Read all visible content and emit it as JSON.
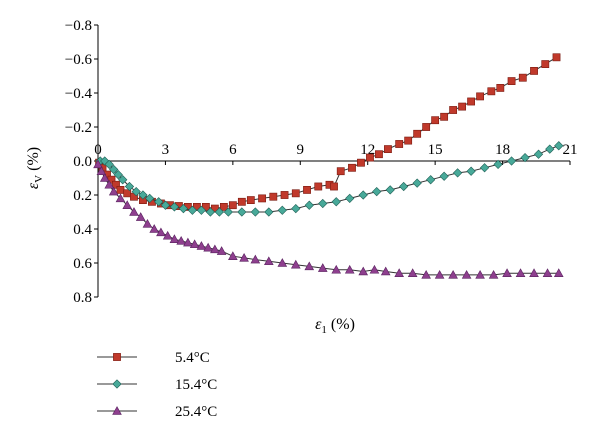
{
  "chart_data": {
    "type": "line",
    "xlabel_symbol": "ε",
    "xlabel_subscript": "1",
    "xlabel_unit": " (%)",
    "ylabel_symbol": "ε",
    "ylabel_subscript": "V",
    "ylabel_unit": " (%)",
    "xlim": [
      0,
      21
    ],
    "ylim": [
      -0.8,
      0.8
    ],
    "y_inverted": true,
    "x_ticks": [
      "0",
      "3",
      "6",
      "9",
      "12",
      "15",
      "18",
      "21"
    ],
    "x_tick_values": [
      0,
      3,
      6,
      9,
      12,
      15,
      18,
      21
    ],
    "y_ticks": [
      "−0.8",
      "−0.6",
      "−0.4",
      "−0.2",
      "0.0",
      "0.2",
      "0.4",
      "0.6",
      "0.8"
    ],
    "y_tick_values": [
      -0.8,
      -0.6,
      -0.4,
      -0.2,
      0.0,
      0.2,
      0.4,
      0.6,
      0.8
    ],
    "grid": false,
    "legend_position": "bottom-left",
    "series": [
      {
        "name": "5.4°C",
        "marker": "square",
        "color": "#c0392b",
        "points": [
          [
            0.05,
            0.01
          ],
          [
            0.2,
            0.04
          ],
          [
            0.4,
            0.08
          ],
          [
            0.6,
            0.11
          ],
          [
            0.8,
            0.14
          ],
          [
            1.0,
            0.17
          ],
          [
            1.3,
            0.19
          ],
          [
            1.6,
            0.21
          ],
          [
            2.0,
            0.23
          ],
          [
            2.4,
            0.24
          ],
          [
            2.8,
            0.25
          ],
          [
            3.2,
            0.26
          ],
          [
            3.6,
            0.265
          ],
          [
            4.0,
            0.27
          ],
          [
            4.4,
            0.27
          ],
          [
            4.8,
            0.27
          ],
          [
            5.2,
            0.28
          ],
          [
            5.6,
            0.27
          ],
          [
            6.0,
            0.26
          ],
          [
            6.4,
            0.24
          ],
          [
            6.8,
            0.23
          ],
          [
            7.3,
            0.22
          ],
          [
            7.8,
            0.21
          ],
          [
            8.3,
            0.2
          ],
          [
            8.8,
            0.19
          ],
          [
            9.3,
            0.17
          ],
          [
            9.8,
            0.15
          ],
          [
            10.3,
            0.14
          ],
          [
            10.5,
            0.15
          ],
          [
            10.8,
            0.06
          ],
          [
            11.3,
            0.04
          ],
          [
            11.7,
            0.01
          ],
          [
            12.1,
            -0.02
          ],
          [
            12.5,
            -0.04
          ],
          [
            12.9,
            -0.07
          ],
          [
            13.4,
            -0.1
          ],
          [
            13.8,
            -0.12
          ],
          [
            14.2,
            -0.16
          ],
          [
            14.6,
            -0.2
          ],
          [
            15.0,
            -0.24
          ],
          [
            15.4,
            -0.26
          ],
          [
            15.8,
            -0.3
          ],
          [
            16.2,
            -0.32
          ],
          [
            16.6,
            -0.35
          ],
          [
            17.0,
            -0.38
          ],
          [
            17.5,
            -0.41
          ],
          [
            17.9,
            -0.43
          ],
          [
            18.4,
            -0.47
          ],
          [
            18.9,
            -0.49
          ],
          [
            19.4,
            -0.53
          ],
          [
            19.9,
            -0.57
          ],
          [
            20.4,
            -0.61
          ]
        ]
      },
      {
        "name": "15.4°C",
        "marker": "diamond",
        "color": "#48a999",
        "points": [
          [
            0.1,
            0.0
          ],
          [
            0.3,
            0.0
          ],
          [
            0.5,
            0.02
          ],
          [
            0.7,
            0.05
          ],
          [
            0.9,
            0.08
          ],
          [
            1.1,
            0.11
          ],
          [
            1.4,
            0.15
          ],
          [
            1.7,
            0.18
          ],
          [
            2.0,
            0.2
          ],
          [
            2.3,
            0.22
          ],
          [
            2.7,
            0.24
          ],
          [
            3.0,
            0.26
          ],
          [
            3.4,
            0.27
          ],
          [
            3.8,
            0.28
          ],
          [
            4.2,
            0.29
          ],
          [
            4.6,
            0.29
          ],
          [
            5.0,
            0.3
          ],
          [
            5.4,
            0.3
          ],
          [
            5.8,
            0.3
          ],
          [
            6.4,
            0.3
          ],
          [
            7.0,
            0.3
          ],
          [
            7.6,
            0.3
          ],
          [
            8.2,
            0.29
          ],
          [
            8.8,
            0.28
          ],
          [
            9.4,
            0.26
          ],
          [
            10.0,
            0.25
          ],
          [
            10.6,
            0.24
          ],
          [
            11.2,
            0.22
          ],
          [
            11.8,
            0.2
          ],
          [
            12.4,
            0.18
          ],
          [
            13.0,
            0.17
          ],
          [
            13.6,
            0.15
          ],
          [
            14.2,
            0.13
          ],
          [
            14.8,
            0.11
          ],
          [
            15.4,
            0.09
          ],
          [
            16.0,
            0.07
          ],
          [
            16.6,
            0.06
          ],
          [
            17.2,
            0.04
          ],
          [
            17.8,
            0.02
          ],
          [
            18.4,
            0.0
          ],
          [
            19.0,
            -0.02
          ],
          [
            19.6,
            -0.04
          ],
          [
            20.1,
            -0.07
          ],
          [
            20.5,
            -0.09
          ]
        ]
      },
      {
        "name": "25.4°C",
        "marker": "triangle",
        "color": "#8e3f8e",
        "points": [
          [
            0.0,
            0.02
          ],
          [
            0.15,
            0.06
          ],
          [
            0.3,
            0.1
          ],
          [
            0.5,
            0.14
          ],
          [
            0.7,
            0.18
          ],
          [
            1.0,
            0.22
          ],
          [
            1.3,
            0.26
          ],
          [
            1.6,
            0.3
          ],
          [
            1.9,
            0.33
          ],
          [
            2.2,
            0.37
          ],
          [
            2.5,
            0.4
          ],
          [
            2.8,
            0.42
          ],
          [
            3.1,
            0.44
          ],
          [
            3.4,
            0.46
          ],
          [
            3.7,
            0.47
          ],
          [
            4.0,
            0.48
          ],
          [
            4.3,
            0.49
          ],
          [
            4.6,
            0.5
          ],
          [
            4.9,
            0.51
          ],
          [
            5.2,
            0.52
          ],
          [
            5.5,
            0.53
          ],
          [
            6.0,
            0.56
          ],
          [
            6.5,
            0.57
          ],
          [
            7.0,
            0.58
          ],
          [
            7.6,
            0.59
          ],
          [
            8.2,
            0.6
          ],
          [
            8.8,
            0.61
          ],
          [
            9.4,
            0.62
          ],
          [
            10.0,
            0.63
          ],
          [
            10.6,
            0.64
          ],
          [
            11.2,
            0.64
          ],
          [
            11.8,
            0.65
          ],
          [
            12.3,
            0.64
          ],
          [
            12.8,
            0.65
          ],
          [
            13.4,
            0.66
          ],
          [
            14.0,
            0.66
          ],
          [
            14.6,
            0.67
          ],
          [
            15.2,
            0.67
          ],
          [
            15.8,
            0.67
          ],
          [
            16.4,
            0.67
          ],
          [
            17.0,
            0.67
          ],
          [
            17.6,
            0.67
          ],
          [
            18.2,
            0.66
          ],
          [
            18.8,
            0.66
          ],
          [
            19.4,
            0.66
          ],
          [
            20.0,
            0.66
          ],
          [
            20.5,
            0.66
          ]
        ]
      }
    ]
  }
}
